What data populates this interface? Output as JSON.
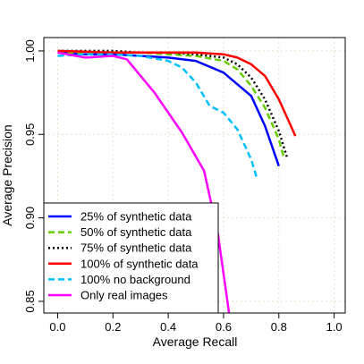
{
  "chart_data": {
    "type": "line",
    "title": "",
    "xlabel": "Average Recall",
    "ylabel": "Average Precision",
    "xlim": [
      -0.05,
      1.04
    ],
    "ylim": [
      0.843,
      1.008
    ],
    "x_ticks": [
      "0.0",
      "0.2",
      "0.4",
      "0.6",
      "0.8",
      "1.0"
    ],
    "y_ticks": [
      "0.85",
      "0.90",
      "0.95",
      "1.00"
    ],
    "grid": true,
    "legend_placement": "bottom-left",
    "series": [
      {
        "name": "25% of synthetic data",
        "color": "#0000ff",
        "style": "solid",
        "x": [
          0.0,
          0.1,
          0.2,
          0.3,
          0.4,
          0.5,
          0.6,
          0.7,
          0.75,
          0.8
        ],
        "y": [
          0.999,
          0.998,
          0.998,
          0.997,
          0.996,
          0.994,
          0.987,
          0.973,
          0.955,
          0.931
        ]
      },
      {
        "name": "50% of synthetic data",
        "color": "#66cc00",
        "style": "dashed",
        "x": [
          0.0,
          0.2,
          0.3,
          0.4,
          0.5,
          0.6,
          0.65,
          0.7,
          0.75,
          0.8,
          0.82
        ],
        "y": [
          0.999,
          0.999,
          0.999,
          0.998,
          0.997,
          0.994,
          0.989,
          0.979,
          0.966,
          0.947,
          0.935
        ]
      },
      {
        "name": "75% of synthetic data",
        "color": "#000000",
        "style": "dotted",
        "x": [
          0.0,
          0.2,
          0.3,
          0.4,
          0.5,
          0.6,
          0.65,
          0.7,
          0.75,
          0.8,
          0.83
        ],
        "y": [
          1.0,
          1.0,
          0.999,
          0.999,
          0.998,
          0.996,
          0.992,
          0.984,
          0.971,
          0.952,
          0.936
        ]
      },
      {
        "name": "100% of synthetic data",
        "color": "#ff0000",
        "style": "solid",
        "x": [
          0.0,
          0.2,
          0.3,
          0.4,
          0.5,
          0.6,
          0.65,
          0.7,
          0.75,
          0.8,
          0.83,
          0.86
        ],
        "y": [
          1.0,
          0.999,
          0.999,
          0.999,
          0.999,
          0.998,
          0.996,
          0.992,
          0.985,
          0.971,
          0.96,
          0.949
        ]
      },
      {
        "name": "100% no background",
        "color": "#00bfff",
        "style": "dashed",
        "x": [
          0.0,
          0.1,
          0.2,
          0.3,
          0.4,
          0.45,
          0.5,
          0.55,
          0.6,
          0.65,
          0.7,
          0.72
        ],
        "y": [
          0.997,
          0.998,
          0.998,
          0.997,
          0.994,
          0.99,
          0.981,
          0.967,
          0.963,
          0.953,
          0.935,
          0.924
        ]
      },
      {
        "name": "Only real images",
        "color": "#ff00ff",
        "style": "solid",
        "x": [
          0.0,
          0.1,
          0.2,
          0.25,
          0.35,
          0.45,
          0.53,
          0.58,
          0.62
        ],
        "y": [
          0.999,
          0.996,
          0.997,
          0.995,
          0.975,
          0.951,
          0.928,
          0.89,
          0.843
        ]
      }
    ]
  }
}
